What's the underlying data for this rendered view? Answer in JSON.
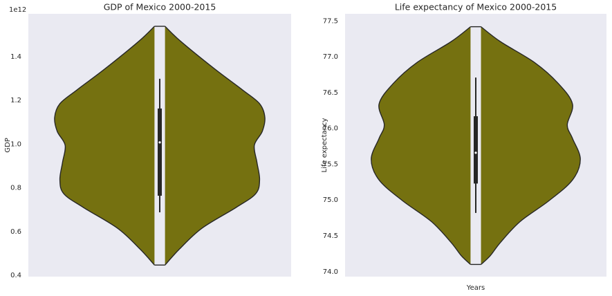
{
  "chart_data": [
    {
      "type": "violin",
      "title": "GDP of Mexico 2000-2015",
      "ylabel": "GDP",
      "offset_label": "1e12",
      "color": "#757110",
      "ylim": [
        0.394,
        1.596
      ],
      "yticks": [
        0.4,
        0.6,
        0.8,
        {
          "value": 1,
          "label": "1.0"
        },
        1.2,
        1.4
      ],
      "violin": {
        "y": [
          1.539,
          1.47,
          1.343,
          1.248,
          1.185,
          1.122,
          1.058,
          0.995,
          0.916,
          0.837,
          0.773,
          0.71,
          0.615,
          0.52,
          0.447
        ],
        "width": [
          0.04,
          0.16,
          0.42,
          0.63,
          0.76,
          0.8,
          0.78,
          0.72,
          0.74,
          0.76,
          0.73,
          0.58,
          0.32,
          0.15,
          0.04
        ]
      },
      "min": 0.688,
      "q1": 0.764,
      "median": 1.008,
      "q3": 1.163,
      "max": 1.299
    },
    {
      "type": "violin",
      "title": "Life expectancy of Mexico 2000-2015",
      "ylabel": "Life expectancy",
      "xlabel": "Years",
      "color": "#757110",
      "ylim": [
        73.93,
        77.6
      ],
      "yticks": [
        {
          "value": 74,
          "label": "74.0"
        },
        74.5,
        {
          "value": 75,
          "label": "75.0"
        },
        75.5,
        {
          "value": 76,
          "label": "76.0"
        },
        76.5,
        {
          "value": 77,
          "label": "77.0"
        },
        77.5
      ],
      "violin": {
        "y": [
          77.42,
          77.21,
          76.92,
          76.63,
          76.34,
          76.05,
          75.86,
          75.57,
          75.28,
          74.99,
          74.7,
          74.41,
          74.22,
          74.1
        ],
        "width": [
          0.04,
          0.19,
          0.45,
          0.63,
          0.74,
          0.7,
          0.74,
          0.8,
          0.74,
          0.56,
          0.34,
          0.19,
          0.11,
          0.04
        ]
      },
      "min": 74.82,
      "q1": 75.23,
      "median": 75.66,
      "q3": 76.17,
      "max": 76.71
    }
  ]
}
